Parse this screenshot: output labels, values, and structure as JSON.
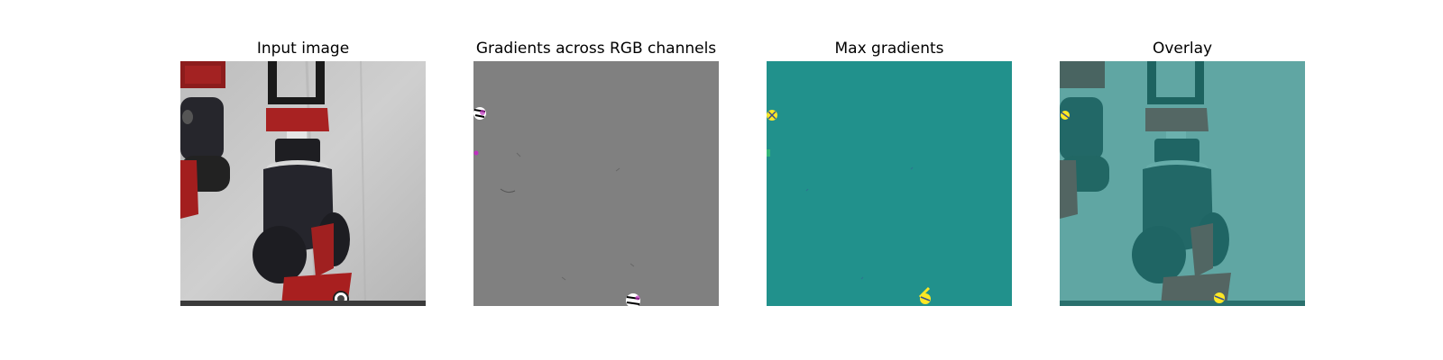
{
  "figure": {
    "panels": [
      {
        "title": "Input image",
        "kind": "input-image"
      },
      {
        "title": "Gradients across RGB channels",
        "kind": "rgb-gradient-map"
      },
      {
        "title": "Max gradients",
        "kind": "max-gradient-map"
      },
      {
        "title": "Overlay",
        "kind": "overlay-image"
      }
    ]
  },
  "colors": {
    "gradient_gray": "#808080",
    "max_gradient_teal": "#21918c",
    "robot_red": "#a31e1e",
    "robot_black": "#1f1f26",
    "background_white": "#c9c9c9"
  }
}
